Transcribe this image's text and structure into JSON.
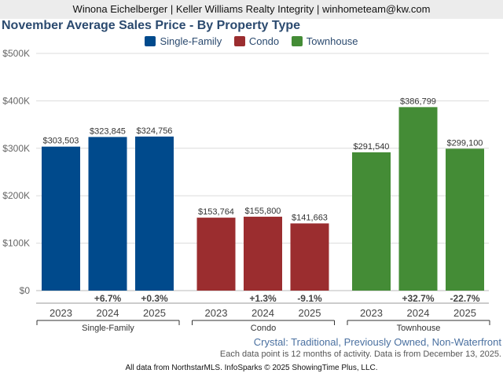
{
  "header": "Winona Eichelberger | Keller Williams Realty Integrity | winhometeam@kw.com",
  "footer": {
    "subtitle": "Crystal: Traditional, Previously Owned, Non-Waterfront",
    "note": "Each data point is 12 months of activity. Data is from December 13, 2025.",
    "credit": "All data from NorthstarMLS. InfoSparks © 2025 ShowingTime Plus, LLC."
  },
  "chart_data": {
    "type": "bar",
    "title": "November Average Sales Price - By Property Type",
    "ylim": [
      0,
      500000
    ],
    "yticks": [
      "$0",
      "$100K",
      "$200K",
      "$300K",
      "$400K",
      "$500K"
    ],
    "grid": true,
    "legend_position": "top-center",
    "categories": [
      "2023",
      "2024",
      "2025"
    ],
    "series": [
      {
        "name": "Single-Family",
        "color": "#004a8c",
        "values": [
          303503,
          323845,
          324756
        ],
        "labels": [
          "$303,503",
          "$323,845",
          "$324,756"
        ],
        "changes": [
          "",
          "+6.7%",
          "+0.3%"
        ]
      },
      {
        "name": "Condo",
        "color": "#9b2d2f",
        "values": [
          153764,
          155800,
          141663
        ],
        "labels": [
          "$153,764",
          "$155,800",
          "$141,663"
        ],
        "changes": [
          "",
          "+1.3%",
          "-9.1%"
        ]
      },
      {
        "name": "Townhouse",
        "color": "#448c36",
        "values": [
          291540,
          386799,
          299100
        ],
        "labels": [
          "$291,540",
          "$386,799",
          "$299,100"
        ],
        "changes": [
          "",
          "+32.7%",
          "-22.7%"
        ]
      }
    ]
  }
}
